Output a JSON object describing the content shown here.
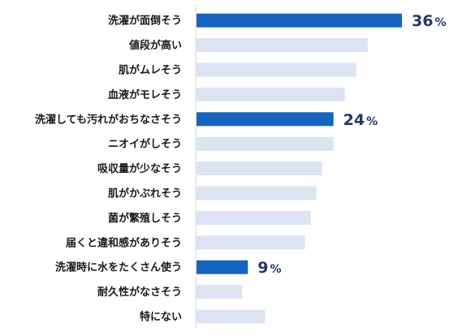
{
  "chart_data": {
    "type": "bar",
    "orientation": "horizontal",
    "categories": [
      "洗濯が面倒そう",
      "値段が高い",
      "肌がムレそう",
      "血液がモレそう",
      "洗濯しても汚れがおちなさそう",
      "ニオイがしそう",
      "吸収量が少なそう",
      "肌がかぶれそう",
      "菌が繁殖しそう",
      "届くと違和感がありそう",
      "洗濯時に水をたくさん使う",
      "耐久性がなさそう",
      "特にない"
    ],
    "values": [
      36,
      30,
      28,
      26,
      24,
      24,
      22,
      21,
      20,
      19,
      9,
      8,
      12
    ],
    "highlighted": [
      true,
      false,
      false,
      false,
      true,
      false,
      false,
      false,
      false,
      false,
      true,
      false,
      false
    ],
    "data_labels": [
      {
        "category": "洗濯が面倒そう",
        "number": "36",
        "unit": "%"
      },
      {
        "category": "洗濯しても汚れがおちなさそう",
        "number": "24",
        "unit": "%"
      },
      {
        "category": "洗濯時に水をたくさん使う",
        "number": "9",
        "unit": "%"
      }
    ],
    "xlim": [
      0,
      36
    ],
    "grid": false,
    "legend": "none",
    "colors": {
      "highlight": "#1565c0",
      "normal": "#dce3f3",
      "axis": "#d0d6e4",
      "label_text": "#1a1a1a",
      "value_text": "#1f3864"
    }
  }
}
